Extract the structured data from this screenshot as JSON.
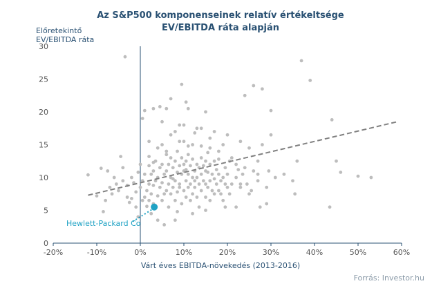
{
  "chart_data": {
    "type": "scatter",
    "title": "Az S&P500 komponenseinek  relatív értékeltsége",
    "subtitle": "EV/EBITDA ráta alapján",
    "ylabel_lines": [
      "Előretekintő",
      "EV/EBITDA ráta"
    ],
    "xlabel": "Várt éves EBITDA-növekedés (2013-2016)",
    "xlim": [
      -20,
      60
    ],
    "ylim": [
      0,
      30
    ],
    "x_ticks": [
      -20,
      -10,
      0,
      10,
      20,
      30,
      40,
      50,
      60
    ],
    "x_tick_labels": [
      "-20%",
      "-10%",
      "0%",
      "10%",
      "20%",
      "30%",
      "40%",
      "50%",
      "60%"
    ],
    "y_ticks": [
      0,
      5,
      10,
      15,
      20,
      25,
      30
    ],
    "y_tick_labels": [
      "0",
      "5",
      "10",
      "15",
      "20",
      "25",
      "30"
    ],
    "grid": false,
    "trendline": {
      "x": [
        -12,
        59
      ],
      "y": [
        7.3,
        18.5
      ]
    },
    "highlight": {
      "label": "Hewlett-Packard Co",
      "x": 3.2,
      "y": 5.5,
      "color": "#1fa2c4"
    },
    "point_color": "#bdbdbd",
    "trend_color": "#808080",
    "axis_color": "#2a5173",
    "points": [
      [
        -12,
        10.4
      ],
      [
        -10,
        7.2
      ],
      [
        -9,
        11.4
      ],
      [
        -8.5,
        4.8
      ],
      [
        -8,
        6.5
      ],
      [
        -7.5,
        11
      ],
      [
        -7,
        8.5
      ],
      [
        -6.5,
        7.5
      ],
      [
        -6,
        10
      ],
      [
        -5.5,
        9
      ],
      [
        -5,
        8
      ],
      [
        -4.5,
        13.2
      ],
      [
        -4,
        11.5
      ],
      [
        -4,
        9.5
      ],
      [
        -3.5,
        28.4
      ],
      [
        -3,
        7
      ],
      [
        -3,
        8.8
      ],
      [
        -2.5,
        6.2
      ],
      [
        -2,
        10
      ],
      [
        -2,
        6.8
      ],
      [
        -1.5,
        9.2
      ],
      [
        -1,
        5.5
      ],
      [
        -1,
        7.8
      ],
      [
        -0.5,
        10.8
      ],
      [
        -0.5,
        4
      ],
      [
        0,
        8.5
      ],
      [
        0,
        12
      ],
      [
        0.5,
        6.5
      ],
      [
        0.5,
        9.5
      ],
      [
        0.5,
        19
      ],
      [
        1,
        7
      ],
      [
        1,
        10.5
      ],
      [
        1,
        20.2
      ],
      [
        1.5,
        8
      ],
      [
        1.5,
        5.6
      ],
      [
        2,
        11.8
      ],
      [
        2,
        6.5
      ],
      [
        2,
        9
      ],
      [
        2,
        13.2
      ],
      [
        2.5,
        7.5
      ],
      [
        2.5,
        10.5
      ],
      [
        2.5,
        4.5
      ],
      [
        3,
        8.8
      ],
      [
        3,
        11
      ],
      [
        3,
        6
      ],
      [
        3,
        20.5
      ],
      [
        3.5,
        9.5
      ],
      [
        3.5,
        12.5
      ],
      [
        4,
        7.2
      ],
      [
        4,
        10
      ],
      [
        4,
        14.5
      ],
      [
        4,
        3.5
      ],
      [
        4.5,
        8.5
      ],
      [
        4.5,
        11.5
      ],
      [
        4.5,
        20.8
      ],
      [
        5,
        6.5
      ],
      [
        5,
        9.2
      ],
      [
        5,
        12
      ],
      [
        5,
        15
      ],
      [
        5.5,
        7.5
      ],
      [
        5.5,
        10.5
      ],
      [
        5.5,
        2.8
      ],
      [
        6,
        8
      ],
      [
        6,
        11
      ],
      [
        6,
        13.5
      ],
      [
        6,
        20.5
      ],
      [
        6.5,
        9
      ],
      [
        6.5,
        12
      ],
      [
        6.5,
        5.5
      ],
      [
        7,
        7.5
      ],
      [
        7,
        10
      ],
      [
        7,
        13
      ],
      [
        7,
        16.5
      ],
      [
        7.5,
        8.5
      ],
      [
        7.5,
        11.5
      ],
      [
        7.5,
        9.8
      ],
      [
        8,
        6.5
      ],
      [
        8,
        9.5
      ],
      [
        8,
        12.5
      ],
      [
        8,
        17
      ],
      [
        8.5,
        7.8
      ],
      [
        8.5,
        10.8
      ],
      [
        8.5,
        14
      ],
      [
        8.5,
        4.8
      ],
      [
        9,
        9
      ],
      [
        9,
        11.8
      ],
      [
        9,
        8.5
      ],
      [
        9,
        18
      ],
      [
        9.5,
        6
      ],
      [
        9.5,
        10.5
      ],
      [
        9.5,
        13
      ],
      [
        9.5,
        24.2
      ],
      [
        10,
        8
      ],
      [
        10,
        11
      ],
      [
        10,
        12
      ],
      [
        10,
        15.5
      ],
      [
        10,
        18
      ],
      [
        10.5,
        7
      ],
      [
        10.5,
        9.5
      ],
      [
        10.5,
        12.5
      ],
      [
        10.5,
        11.2
      ],
      [
        11,
        8.5
      ],
      [
        11,
        10.5
      ],
      [
        11,
        13.5
      ],
      [
        11,
        20.5
      ],
      [
        11.5,
        6.5
      ],
      [
        11.5,
        9
      ],
      [
        11.5,
        11.8
      ],
      [
        12,
        7.5
      ],
      [
        12,
        10
      ],
      [
        12,
        12.8
      ],
      [
        12,
        15
      ],
      [
        12.5,
        8.5
      ],
      [
        12.5,
        11
      ],
      [
        12.5,
        9.5
      ],
      [
        13,
        7
      ],
      [
        13,
        10
      ],
      [
        13,
        12
      ],
      [
        13,
        17.5
      ],
      [
        13.5,
        9
      ],
      [
        13.5,
        11.5
      ],
      [
        13.5,
        5.5
      ],
      [
        14,
        8
      ],
      [
        14,
        10.5
      ],
      [
        14,
        13
      ],
      [
        14,
        14.8
      ],
      [
        14.5,
        9.5
      ],
      [
        14.5,
        11.8
      ],
      [
        15,
        7
      ],
      [
        15,
        9
      ],
      [
        15,
        11
      ],
      [
        15,
        12.5
      ],
      [
        15,
        20
      ],
      [
        15.5,
        8.5
      ],
      [
        15.5,
        10.8
      ],
      [
        16,
        6.5
      ],
      [
        16,
        9.5
      ],
      [
        16,
        12
      ],
      [
        16,
        14.5
      ],
      [
        16.5,
        8
      ],
      [
        16.5,
        10.5
      ],
      [
        17,
        7.5
      ],
      [
        17,
        9.8
      ],
      [
        17,
        12.5
      ],
      [
        17,
        17
      ],
      [
        17.5,
        9
      ],
      [
        17.5,
        11.2
      ],
      [
        18,
        8
      ],
      [
        18,
        10.5
      ],
      [
        18,
        14
      ],
      [
        18.5,
        7.5
      ],
      [
        18.5,
        9.5
      ],
      [
        19,
        10
      ],
      [
        19,
        15
      ],
      [
        19,
        6.5
      ],
      [
        19.5,
        9
      ],
      [
        19.5,
        11.5
      ],
      [
        20,
        8.5
      ],
      [
        20,
        10.5
      ],
      [
        20,
        16.5
      ],
      [
        20.5,
        7.5
      ],
      [
        21,
        9
      ],
      [
        21,
        13
      ],
      [
        22,
        10
      ],
      [
        22,
        12
      ],
      [
        22,
        5.5
      ],
      [
        23,
        8.5
      ],
      [
        23,
        15.5
      ],
      [
        23.5,
        10.5
      ],
      [
        24,
        11.5
      ],
      [
        24,
        22.5
      ],
      [
        24.5,
        9
      ],
      [
        25,
        14.5
      ],
      [
        25,
        7.5
      ],
      [
        26,
        11
      ],
      [
        26,
        24
      ],
      [
        27,
        9.5
      ],
      [
        27,
        12.5
      ],
      [
        27.5,
        5.5
      ],
      [
        28,
        23.5
      ],
      [
        28,
        15
      ],
      [
        29,
        8.5
      ],
      [
        29,
        6
      ],
      [
        29.5,
        11
      ],
      [
        30,
        20.2
      ],
      [
        30,
        16.5
      ],
      [
        31,
        10
      ],
      [
        37,
        27.8
      ],
      [
        39,
        24.8
      ],
      [
        43.5,
        5.5
      ],
      [
        44,
        18.8
      ],
      [
        45,
        12.5
      ],
      [
        46,
        10.8
      ],
      [
        50,
        10.2
      ],
      [
        53,
        10
      ],
      [
        33,
        10.5
      ],
      [
        35.5,
        7.5
      ],
      [
        36,
        12.5
      ],
      [
        35,
        9.5
      ],
      [
        3,
        12.3
      ],
      [
        6,
        14
      ],
      [
        9,
        15.5
      ],
      [
        11,
        14.8
      ],
      [
        14,
        17.5
      ],
      [
        16,
        16
      ],
      [
        2,
        15.5
      ],
      [
        5,
        18.5
      ],
      [
        7,
        22
      ],
      [
        10.5,
        21.5
      ],
      [
        12.5,
        16.8
      ],
      [
        15.5,
        13.8
      ],
      [
        18,
        12.8
      ],
      [
        20.5,
        12.5
      ],
      [
        22.5,
        11.2
      ],
      [
        25.5,
        8
      ],
      [
        8,
        3.5
      ],
      [
        12,
        4.5
      ],
      [
        15,
        5
      ],
      [
        19.5,
        5.5
      ],
      [
        23,
        9
      ],
      [
        27,
        10.5
      ]
    ]
  }
}
